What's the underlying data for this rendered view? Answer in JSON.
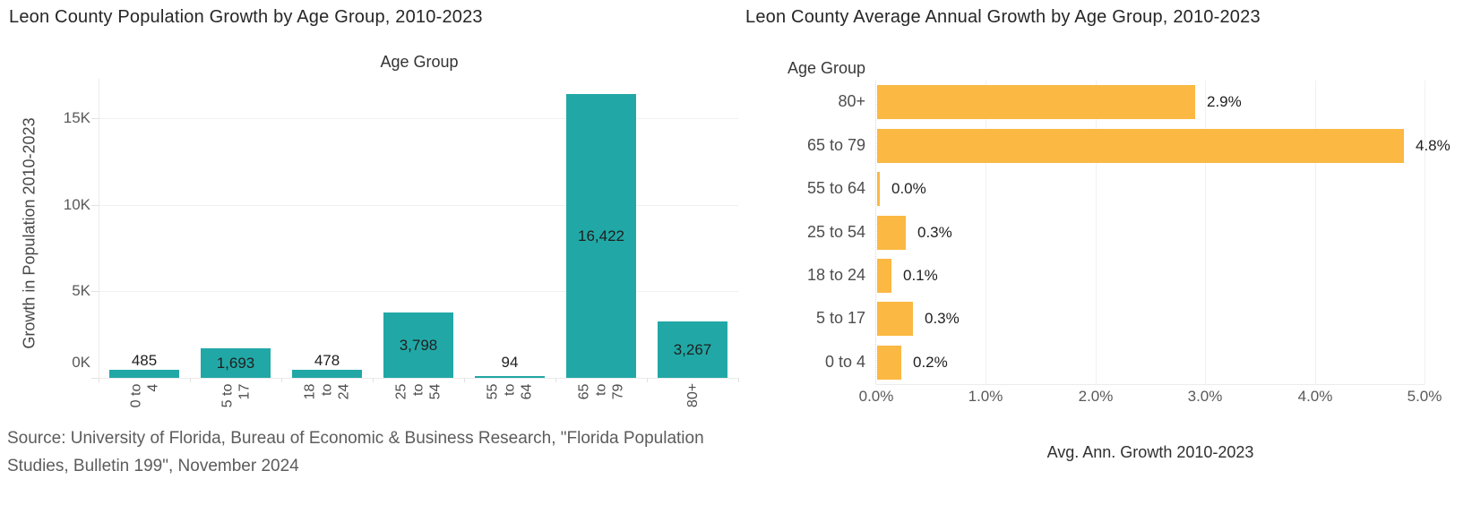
{
  "page": {
    "background_color": "#ffffff",
    "accent_teal": "#21a8a6",
    "accent_orange": "#fbb843"
  },
  "source_note": {
    "line1": "Source: University of Florida, Bureau of Economic & Business Research, \"Florida Population",
    "line2": "Studies, Bulletin 199\", November 2024"
  },
  "chart_data": [
    {
      "type": "bar",
      "orientation": "vertical",
      "title": "Leon County Population Growth by Age Group, 2010-2023",
      "x_axis_title": "Age Group",
      "y_axis_title": "Growth in Population 2010-2023",
      "categories": [
        "0 to 4",
        "5 to 17",
        "18 to 24",
        "25 to 54",
        "55 to 64",
        "65 to 79",
        "80+"
      ],
      "category_label_lines": [
        [
          "0 to",
          "4"
        ],
        [
          "5 to",
          "17"
        ],
        [
          "18",
          "to",
          "24"
        ],
        [
          "25",
          "to",
          "54"
        ],
        [
          "55",
          "to",
          "64"
        ],
        [
          "65",
          "to",
          "79"
        ],
        [
          "80+"
        ]
      ],
      "values": [
        485,
        1693,
        478,
        3798,
        94,
        16422,
        3267
      ],
      "value_labels": [
        "485",
        "1,693",
        "478",
        "3,798",
        "94",
        "16,422",
        "3,267"
      ],
      "y_ticks": [
        {
          "value": 0,
          "label": "0K"
        },
        {
          "value": 5000,
          "label": "5K"
        },
        {
          "value": 10000,
          "label": "10K"
        },
        {
          "value": 15000,
          "label": "15K"
        }
      ],
      "ylim": [
        0,
        17300
      ],
      "bar_color": "#21a8a6",
      "grid": true,
      "legend": "none"
    },
    {
      "type": "bar",
      "orientation": "horizontal",
      "title": "Leon County Average Annual Growth by Age Group, 2010-2023",
      "x_axis_title": "Avg. Ann. Growth 2010-2023",
      "y_axis_title": "Age Group",
      "categories": [
        "80+",
        "65 to 79",
        "55 to 64",
        "25 to 54",
        "18 to 24",
        "5 to 17",
        "0 to 4"
      ],
      "values": [
        2.9,
        4.8,
        0.02,
        0.26,
        0.13,
        0.33,
        0.22
      ],
      "value_labels": [
        "2.9%",
        "4.8%",
        "0.0%",
        "0.3%",
        "0.1%",
        "0.3%",
        "0.2%"
      ],
      "x_ticks": [
        {
          "value": 0,
          "label": "0.0%"
        },
        {
          "value": 1,
          "label": "1.0%"
        },
        {
          "value": 2,
          "label": "2.0%"
        },
        {
          "value": 3,
          "label": "3.0%"
        },
        {
          "value": 4,
          "label": "4.0%"
        },
        {
          "value": 5,
          "label": "5.0%"
        }
      ],
      "xlim": [
        0,
        5
      ],
      "bar_color": "#fbb843",
      "grid": true,
      "legend": "none"
    }
  ]
}
